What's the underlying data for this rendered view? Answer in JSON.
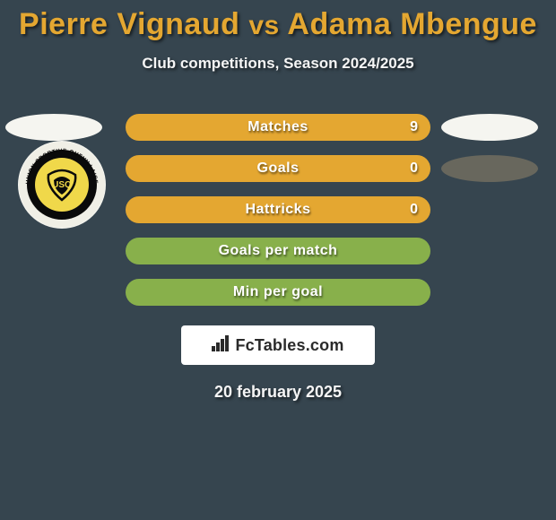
{
  "title": {
    "player1": "Pierre Vignaud",
    "vs": "vs",
    "player2": "Adama Mbengue",
    "color": "#e4a731"
  },
  "subtitle": "Club competitions, Season 2024/2025",
  "side_ovals": {
    "left": [
      {
        "row": 0,
        "color": "#f5f5f0"
      }
    ],
    "right": [
      {
        "row": 0,
        "color": "#f5f5f0"
      },
      {
        "row": 1,
        "color": "#68675d"
      }
    ]
  },
  "club_badge": {
    "outer_ring": "#0a0a0a",
    "inner_ring": "#f0efe6",
    "center": "#f0d84a",
    "text_color": "#0a0a0a",
    "top_text": "UNION SPORTIVE QUEVILLAISE"
  },
  "rows": [
    {
      "label": "Matches",
      "left": "",
      "right": "9",
      "left_pct": 0,
      "right_pct": 100,
      "show_left": false,
      "show_right": true
    },
    {
      "label": "Goals",
      "left": "",
      "right": "0",
      "left_pct": 0,
      "right_pct": 100,
      "show_left": false,
      "show_right": true
    },
    {
      "label": "Hattricks",
      "left": "",
      "right": "0",
      "left_pct": 0,
      "right_pct": 100,
      "show_left": false,
      "show_right": true
    },
    {
      "label": "Goals per match",
      "left": "",
      "right": "",
      "left_pct": 100,
      "right_pct": 0,
      "show_left": false,
      "show_right": false
    },
    {
      "label": "Min per goal",
      "left": "",
      "right": "",
      "left_pct": 100,
      "right_pct": 0,
      "show_left": false,
      "show_right": false
    }
  ],
  "row_colors": {
    "left": "#88b04b",
    "right": "#e4a731"
  },
  "brand": {
    "icon": "bars-icon",
    "text": "FcTables.com",
    "text_color": "#2a2a2a",
    "bg": "#ffffff"
  },
  "date": "20 february 2025",
  "bg_color": "#36454f"
}
